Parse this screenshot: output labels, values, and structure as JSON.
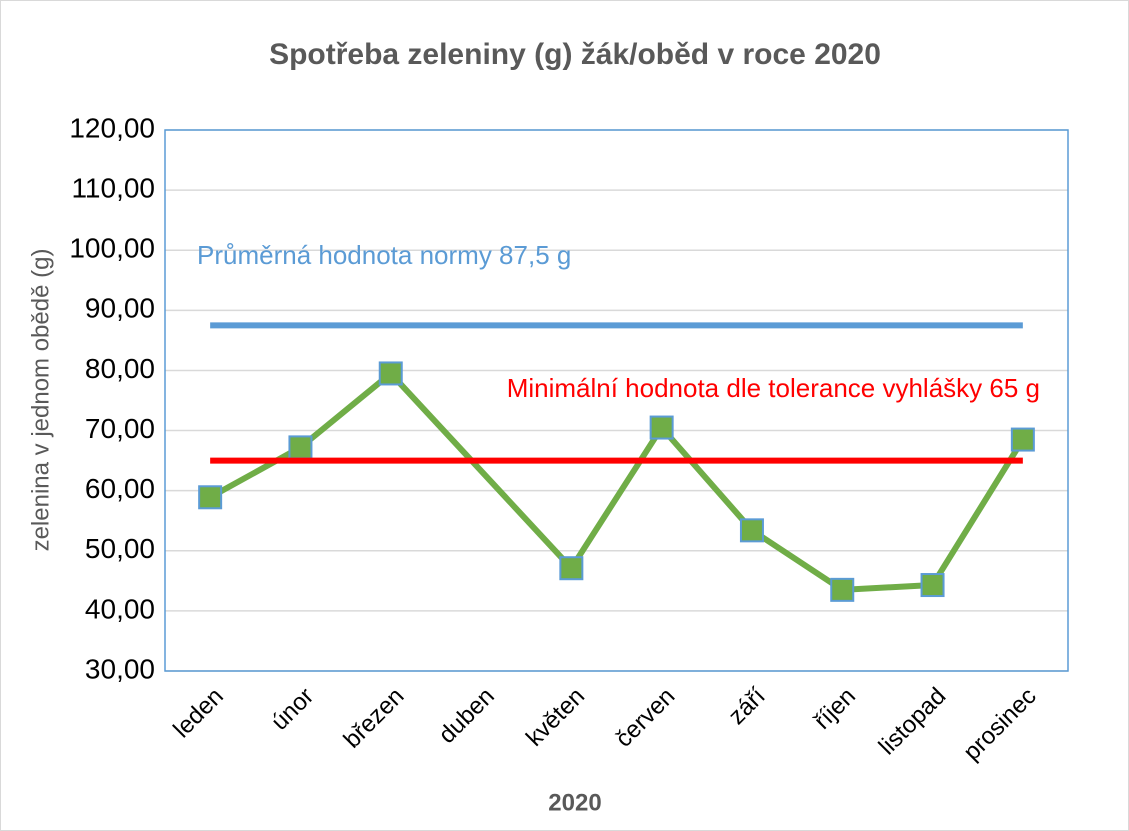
{
  "chart_data": {
    "type": "line",
    "title": "Spotřeba zeleniny (g) žák/oběd v roce 2020",
    "y_label": "zelenina v jednom obědě (g)",
    "x_label": "2020",
    "categories": [
      "leden",
      "únor",
      "březen",
      "duben",
      "květen",
      "červen",
      "září",
      "říjen",
      "listopad",
      "prosinec"
    ],
    "series": [
      {
        "color": "#70ad47",
        "marker_edge": "#5b9bd5",
        "marker": "square",
        "values": [
          58.9,
          67.2,
          79.5,
          null,
          47.1,
          70.5,
          53.4,
          43.5,
          44.3,
          68.5
        ]
      },
      {
        "color": "#5b9bd5",
        "values": [
          87.5,
          87.5,
          87.5,
          87.5,
          87.5,
          87.5,
          87.5,
          87.5,
          87.5,
          87.5
        ]
      },
      {
        "color": "#ff0000",
        "values": [
          65,
          65,
          65,
          65,
          65,
          65,
          65,
          65,
          65,
          65
        ]
      }
    ],
    "annotations": [
      {
        "text": "Průměrná hodnota normy 87,5 g",
        "color": "#5b9bd5"
      },
      {
        "text": "Minimální hodnota dle tolerance vyhlášky 65 g",
        "color": "#ff0000"
      }
    ],
    "connect_gaps": true,
    "ylim": [
      30,
      120
    ],
    "yticks": [
      {
        "value": 30,
        "label": "30,00"
      },
      {
        "value": 40,
        "label": "40,00"
      },
      {
        "value": 50,
        "label": "50,00"
      },
      {
        "value": 60,
        "label": "60,00"
      },
      {
        "value": 70,
        "label": "70,00"
      },
      {
        "value": 80,
        "label": "80,00"
      },
      {
        "value": 90,
        "label": "90,00"
      },
      {
        "value": 100,
        "label": "100,00"
      },
      {
        "value": 110,
        "label": "110,00"
      },
      {
        "value": 120,
        "label": "120,00"
      }
    ],
    "grid": true
  }
}
